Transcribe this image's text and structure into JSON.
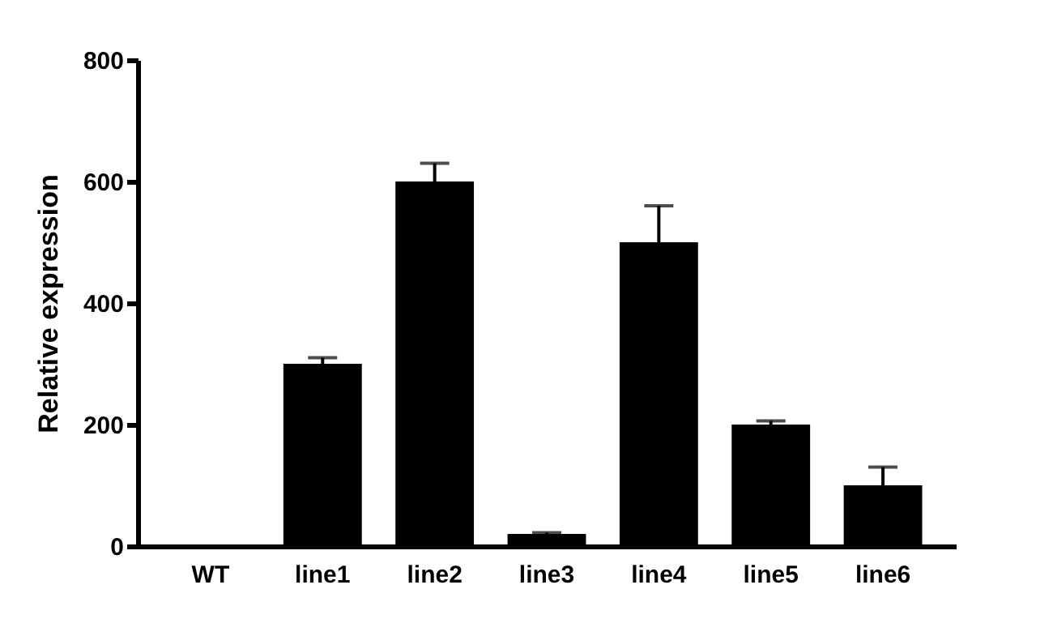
{
  "chart_data": {
    "type": "bar",
    "ylabel": "Relative expression",
    "categories": [
      "WT",
      "line1",
      "line2",
      "line3",
      "line4",
      "line5",
      "line6"
    ],
    "values": [
      1,
      300,
      600,
      20,
      500,
      200,
      100
    ],
    "errors": [
      null,
      [
        300,
        310
      ],
      [
        600,
        630
      ],
      [
        20,
        22
      ],
      [
        500,
        560
      ],
      [
        200,
        206
      ],
      [
        100,
        130
      ]
    ],
    "color": "#000000",
    "ylim": [
      0,
      800
    ],
    "yticks": [
      0,
      200,
      400,
      600,
      800
    ],
    "grid": false
  }
}
